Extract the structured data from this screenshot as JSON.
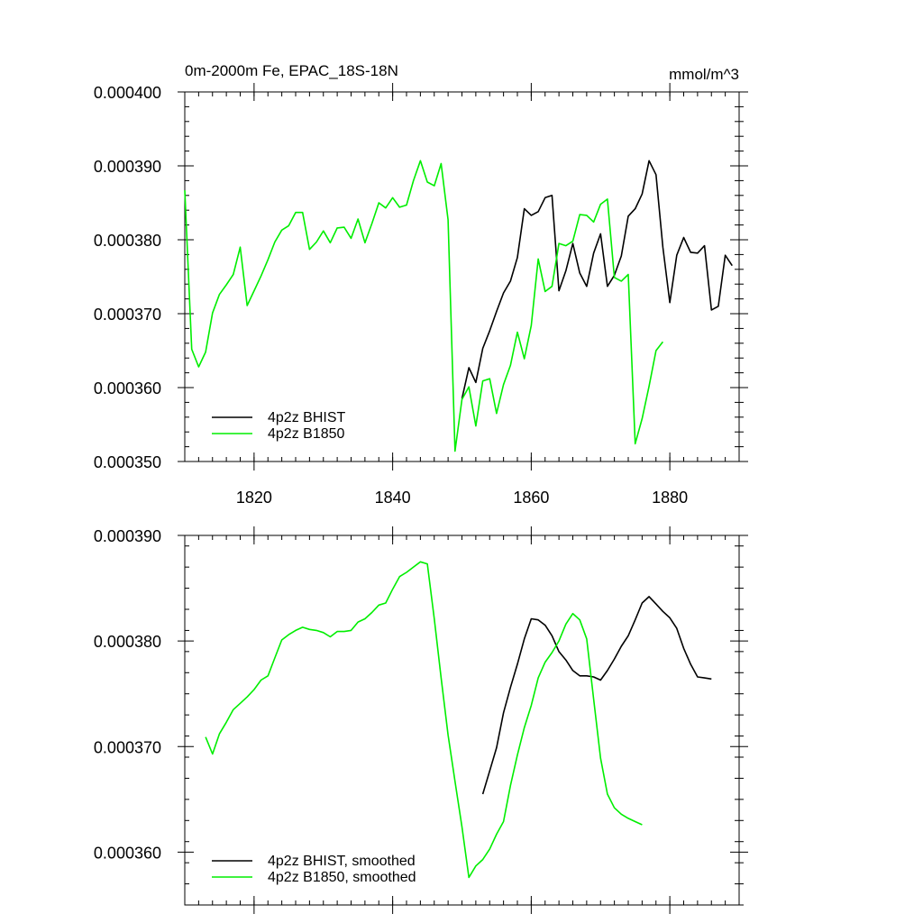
{
  "chart_data": [
    {
      "type": "line",
      "title": "0m-2000m Fe, EPAC_18S-18N",
      "units": "mmol/m^3",
      "xlim": [
        1810,
        1890
      ],
      "ylim": [
        0.00035,
        0.0004
      ],
      "y_ticks": [
        0.00035,
        0.00036,
        0.00037,
        0.00038,
        0.00039,
        0.0004
      ],
      "y_tick_labels": [
        "0.000350",
        "0.000360",
        "0.000370",
        "0.000380",
        "0.000390",
        "0.000400"
      ],
      "x_ticks": [
        1820,
        1840,
        1860,
        1880
      ],
      "x_tick_labels": [
        "1820",
        "1840",
        "1860",
        "1880"
      ],
      "legend_position": "bottom-left",
      "series": [
        {
          "name": "4p2z BHIST",
          "color": "#000000",
          "x": [
            1850,
            1851,
            1852,
            1853,
            1854,
            1855,
            1856,
            1857,
            1858,
            1859,
            1860,
            1861,
            1862,
            1863,
            1864,
            1865,
            1866,
            1867,
            1868,
            1869,
            1870,
            1871,
            1872,
            1873,
            1874,
            1875,
            1876,
            1877,
            1878,
            1879,
            1880,
            1881,
            1882,
            1883,
            1884,
            1885,
            1886,
            1887,
            1888,
            1889
          ],
          "y": [
            0.0003585,
            0.0003627,
            0.0003607,
            0.0003653,
            0.0003677,
            0.0003703,
            0.0003728,
            0.0003744,
            0.0003776,
            0.0003842,
            0.0003833,
            0.0003838,
            0.0003857,
            0.000386,
            0.0003731,
            0.0003758,
            0.0003795,
            0.0003755,
            0.0003737,
            0.0003782,
            0.0003808,
            0.0003737,
            0.0003752,
            0.0003778,
            0.0003832,
            0.0003842,
            0.0003862,
            0.0003907,
            0.0003888,
            0.000379,
            0.0003715,
            0.0003779,
            0.0003803,
            0.0003783,
            0.0003782,
            0.0003792,
            0.0003705,
            0.000371,
            0.0003779,
            0.0003765
          ]
        },
        {
          "name": "4p2z B1850",
          "color": "#00ee00",
          "x": [
            1810,
            1811,
            1812,
            1813,
            1814,
            1815,
            1816,
            1817,
            1818,
            1819,
            1820,
            1821,
            1822,
            1823,
            1824,
            1825,
            1826,
            1827,
            1828,
            1829,
            1830,
            1831,
            1832,
            1833,
            1834,
            1835,
            1836,
            1837,
            1838,
            1839,
            1840,
            1841,
            1842,
            1843,
            1844,
            1845,
            1846,
            1847,
            1848,
            1849,
            1850,
            1851,
            1852,
            1853,
            1854,
            1855,
            1856,
            1857,
            1858,
            1859,
            1860,
            1861,
            1862,
            1863,
            1864,
            1865,
            1866,
            1867,
            1868,
            1869,
            1870,
            1871,
            1872,
            1873,
            1874,
            1875,
            1876,
            1877,
            1878,
            1879
          ],
          "y": [
            0.0003867,
            0.0003652,
            0.0003628,
            0.0003648,
            0.0003701,
            0.0003726,
            0.0003739,
            0.0003753,
            0.000379,
            0.0003711,
            0.0003731,
            0.0003751,
            0.0003773,
            0.0003797,
            0.0003813,
            0.0003819,
            0.0003837,
            0.0003837,
            0.0003787,
            0.0003797,
            0.0003812,
            0.0003796,
            0.0003816,
            0.0003817,
            0.0003802,
            0.0003828,
            0.0003796,
            0.0003822,
            0.000385,
            0.0003843,
            0.0003857,
            0.0003844,
            0.0003847,
            0.000388,
            0.0003907,
            0.0003878,
            0.0003873,
            0.0003903,
            0.0003827,
            0.0003514,
            0.0003584,
            0.0003601,
            0.0003548,
            0.0003609,
            0.0003612,
            0.0003565,
            0.0003604,
            0.000363,
            0.0003675,
            0.0003639,
            0.0003684,
            0.0003774,
            0.000373,
            0.0003737,
            0.0003795,
            0.0003792,
            0.0003798,
            0.0003834,
            0.0003833,
            0.0003824,
            0.0003848,
            0.0003855,
            0.0003749,
            0.0003744,
            0.0003753,
            0.0003524,
            0.0003558,
            0.0003602,
            0.000365,
            0.0003662
          ]
        }
      ]
    },
    {
      "type": "line",
      "title": "",
      "xlim": [
        1810,
        1890
      ],
      "ylim": [
        0.000355,
        0.00039
      ],
      "y_ticks": [
        0.00036,
        0.00037,
        0.00038,
        0.00039
      ],
      "y_tick_labels": [
        "0.000360",
        "0.000370",
        "0.000380",
        "0.000390"
      ],
      "x_ticks": [
        1820,
        1840,
        1860,
        1880
      ],
      "x_tick_labels": [],
      "legend_position": "bottom-left",
      "series": [
        {
          "name": "4p2z BHIST, smoothed",
          "color": "#000000",
          "x": [
            1853,
            1854,
            1855,
            1856,
            1857,
            1858,
            1859,
            1860,
            1861,
            1862,
            1863,
            1864,
            1865,
            1866,
            1867,
            1868,
            1869,
            1870,
            1871,
            1872,
            1873,
            1874,
            1875,
            1876,
            1877,
            1878,
            1879,
            1880,
            1881,
            1882,
            1883,
            1884,
            1885,
            1886
          ],
          "y": [
            0.0003655,
            0.0003677,
            0.0003699,
            0.0003732,
            0.0003756,
            0.0003778,
            0.0003802,
            0.0003821,
            0.000382,
            0.0003815,
            0.0003805,
            0.000379,
            0.0003782,
            0.0003772,
            0.0003767,
            0.0003767,
            0.0003766,
            0.0003763,
            0.0003772,
            0.0003783,
            0.0003795,
            0.0003805,
            0.000382,
            0.0003836,
            0.0003842,
            0.0003835,
            0.0003828,
            0.0003822,
            0.0003812,
            0.0003793,
            0.0003778,
            0.0003766,
            0.0003765,
            0.0003764
          ]
        },
        {
          "name": "4p2z B1850, smoothed",
          "color": "#00ee00",
          "x": [
            1813,
            1814,
            1815,
            1816,
            1817,
            1818,
            1819,
            1820,
            1821,
            1822,
            1823,
            1824,
            1825,
            1826,
            1827,
            1828,
            1829,
            1830,
            1831,
            1832,
            1833,
            1834,
            1835,
            1836,
            1837,
            1838,
            1839,
            1840,
            1841,
            1842,
            1843,
            1844,
            1845,
            1846,
            1847,
            1848,
            1849,
            1850,
            1851,
            1852,
            1853,
            1854,
            1855,
            1856,
            1857,
            1858,
            1859,
            1860,
            1861,
            1862,
            1863,
            1864,
            1865,
            1866,
            1867,
            1868,
            1869,
            1870,
            1871,
            1872,
            1873,
            1874,
            1875,
            1876
          ],
          "y": [
            0.0003709,
            0.0003693,
            0.0003712,
            0.0003723,
            0.0003735,
            0.0003741,
            0.0003747,
            0.0003754,
            0.0003763,
            0.0003767,
            0.0003784,
            0.0003801,
            0.0003806,
            0.000381,
            0.0003813,
            0.0003811,
            0.000381,
            0.0003808,
            0.0003804,
            0.0003809,
            0.0003809,
            0.000381,
            0.0003818,
            0.0003821,
            0.0003827,
            0.0003834,
            0.0003836,
            0.0003849,
            0.0003861,
            0.0003865,
            0.000387,
            0.0003875,
            0.0003873,
            0.0003821,
            0.0003765,
            0.0003711,
            0.0003667,
            0.0003624,
            0.0003576,
            0.0003587,
            0.0003593,
            0.0003603,
            0.0003617,
            0.0003629,
            0.0003663,
            0.0003692,
            0.0003718,
            0.0003739,
            0.0003765,
            0.000378,
            0.0003789,
            0.00038,
            0.0003816,
            0.0003826,
            0.000382,
            0.0003802,
            0.0003745,
            0.0003689,
            0.0003655,
            0.0003642,
            0.0003636,
            0.0003632,
            0.0003629,
            0.0003626
          ]
        }
      ]
    }
  ]
}
